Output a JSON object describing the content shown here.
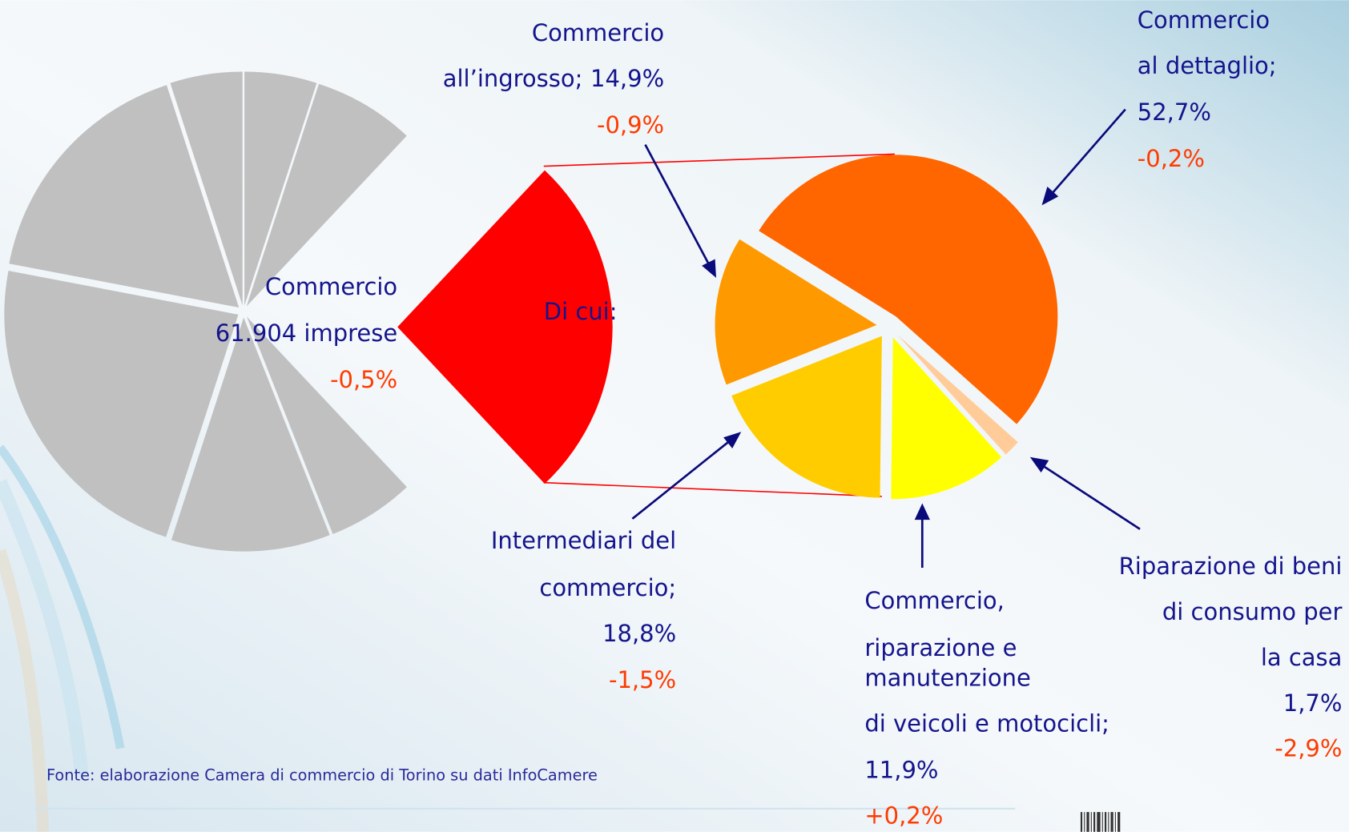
{
  "chart_data": {
    "type": "pie-of-pie",
    "main": {
      "categories": [
        "Commercio",
        null,
        null,
        null,
        null,
        null,
        null,
        null
      ],
      "values": [
        26,
        6,
        11,
        23,
        17,
        5,
        5,
        7
      ],
      "colors": [
        "#ff0000",
        "#c0c0c0",
        "#c0c0c0",
        "#c0c0c0",
        "#c0c0c0",
        "#c0c0c0",
        "#c0c0c0",
        "#c0c0c0"
      ],
      "total": 61904,
      "total_label": "61.904 imprese",
      "change": -0.5,
      "change_label": "-0,5%"
    },
    "link_label": "Di cui:",
    "detail": {
      "categories": [
        [
          "Commercio",
          "al dettaglio;"
        ],
        [
          "Riparazione di beni",
          "di consumo per",
          "la casa"
        ],
        [
          "Commercio,",
          "riparazione e",
          "manutenzione",
          "di veicoli e motocicli;"
        ],
        [
          "Intermediari del",
          "commercio;"
        ],
        [
          "Commercio",
          "all’ingrosso;"
        ]
      ],
      "values": [
        52.7,
        1.7,
        11.9,
        18.8,
        14.9
      ],
      "value_labels": [
        "52,7%",
        "1,7%",
        "11,9%",
        "18,8%",
        "14,9%"
      ],
      "changes": [
        -0.2,
        -2.9,
        0.2,
        -1.5,
        -0.9
      ],
      "change_labels": [
        "-0,2%",
        "-2,9%",
        "+0,2%",
        "-1,5%",
        "-0,9%"
      ],
      "colors": [
        "#ff6600",
        "#ffcc99",
        "#ffff00",
        "#ffcc00",
        "#ff9900"
      ]
    },
    "source": "Fonte: elaborazione Camera di commercio di Torino su dati InfoCamere"
  }
}
